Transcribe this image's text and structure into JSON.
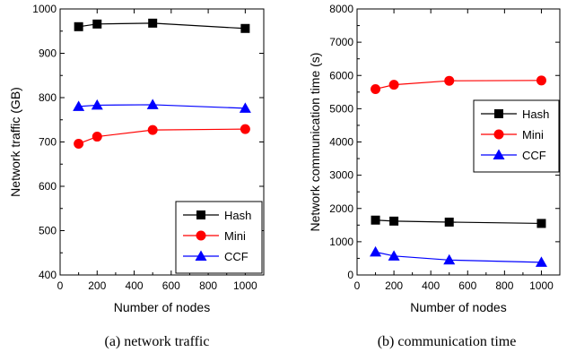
{
  "chart_data": [
    {
      "type": "line",
      "xlabel": "Number of nodes",
      "ylabel": "Network traffic (GB)",
      "caption": "(a) network traffic",
      "xlim": [
        0,
        1100
      ],
      "ylim": [
        400,
        1000
      ],
      "xticks": [
        0,
        200,
        400,
        600,
        800,
        1000
      ],
      "yticks": [
        400,
        500,
        600,
        700,
        800,
        900,
        1000
      ],
      "x": [
        100,
        200,
        500,
        1000
      ],
      "legend_position": "bottom-right",
      "series": [
        {
          "name": "Hash",
          "color": "#000000",
          "marker": "square",
          "values": [
            960,
            966,
            968,
            956
          ]
        },
        {
          "name": "Mini",
          "color": "#ff0000",
          "marker": "circle",
          "values": [
            696,
            712,
            727,
            729
          ]
        },
        {
          "name": "CCF",
          "color": "#0000ff",
          "marker": "triangle",
          "values": [
            780,
            783,
            784,
            776
          ]
        }
      ]
    },
    {
      "type": "line",
      "xlabel": "Number of nodes",
      "ylabel": "Network communication time (s)",
      "caption": "(b) communication time",
      "xlim": [
        0,
        1100
      ],
      "ylim": [
        0,
        8000
      ],
      "xticks": [
        0,
        200,
        400,
        600,
        800,
        1000
      ],
      "yticks": [
        0,
        1000,
        2000,
        3000,
        4000,
        5000,
        6000,
        7000,
        8000
      ],
      "x": [
        100,
        200,
        500,
        1000
      ],
      "legend_position": "right",
      "series": [
        {
          "name": "Hash",
          "color": "#000000",
          "marker": "square",
          "values": [
            1650,
            1620,
            1590,
            1550
          ]
        },
        {
          "name": "Mini",
          "color": "#ff0000",
          "marker": "circle",
          "values": [
            5590,
            5720,
            5840,
            5850
          ]
        },
        {
          "name": "CCF",
          "color": "#0000ff",
          "marker": "triangle",
          "values": [
            690,
            570,
            450,
            380
          ]
        }
      ]
    }
  ]
}
